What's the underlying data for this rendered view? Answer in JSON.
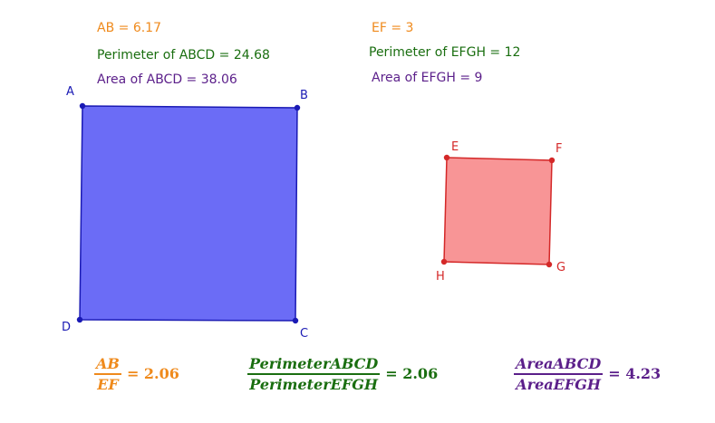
{
  "colors": {
    "orange": "#ef8a1c",
    "green": "#1a6e10",
    "purple": "#5b1f8a",
    "blue_fill": "#6b6cf6",
    "blue_stroke": "#1a1ab4",
    "red_fill": "#f89596",
    "red_stroke": "#d42828"
  },
  "measures": {
    "ab": "AB = 6.17",
    "perimeter_abcd": "Perimeter of ABCD = 24.68",
    "area_abcd": "Area of ABCD = 38.06",
    "ef": "EF = 3",
    "perimeter_efgh": "Perimeter of EFGH = 12",
    "area_efgh": "Area of EFGH = 9"
  },
  "vertices": {
    "a": "A",
    "b": "B",
    "c": "C",
    "d": "D",
    "e": "E",
    "f": "F",
    "g": "G",
    "h": "H"
  },
  "ratios": {
    "side": {
      "num": "AB",
      "den": "EF",
      "value": "= 2.06"
    },
    "perimeter": {
      "num": "PerimeterABCD",
      "den": "PerimeterEFGH",
      "value": "= 2.06"
    },
    "area": {
      "num": "AreaABCD",
      "den": "AreaEFGH",
      "value": "= 4.23"
    }
  }
}
